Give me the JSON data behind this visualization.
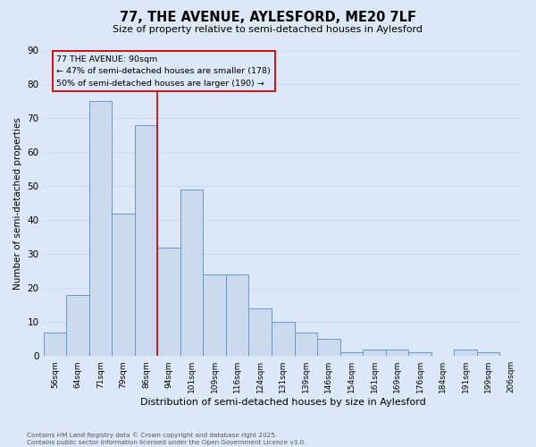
{
  "title": "77, THE AVENUE, AYLESFORD, ME20 7LF",
  "subtitle": "Size of property relative to semi-detached houses in Aylesford",
  "bar_labels": [
    "56sqm",
    "64sqm",
    "71sqm",
    "79sqm",
    "86sqm",
    "94sqm",
    "101sqm",
    "109sqm",
    "116sqm",
    "124sqm",
    "131sqm",
    "139sqm",
    "146sqm",
    "154sqm",
    "161sqm",
    "169sqm",
    "176sqm",
    "184sqm",
    "191sqm",
    "199sqm",
    "206sqm"
  ],
  "bar_values": [
    7,
    18,
    75,
    42,
    68,
    32,
    49,
    24,
    24,
    14,
    10,
    7,
    5,
    1,
    2,
    2,
    1,
    0,
    2,
    1,
    0
  ],
  "bar_color": "#ccdaf0",
  "bar_edge_color": "#6699cc",
  "grid_color": "#d0d8e8",
  "background_color": "#dce8f8",
  "vline_x": 4.5,
  "vline_color": "#cc0000",
  "annotation_title": "77 THE AVENUE: 90sqm",
  "annotation_line1": "← 47% of semi-detached houses are smaller (178)",
  "annotation_line2": "50% of semi-detached houses are larger (190) →",
  "annotation_box_color": "#cc0000",
  "xlabel": "Distribution of semi-detached houses by size in Aylesford",
  "ylabel": "Number of semi-detached properties",
  "ylim": [
    0,
    90
  ],
  "yticks": [
    0,
    10,
    20,
    30,
    40,
    50,
    60,
    70,
    80,
    90
  ],
  "footer_line1": "Contains HM Land Registry data © Crown copyright and database right 2025.",
  "footer_line2": "Contains public sector information licensed under the Open Government Licence v3.0."
}
